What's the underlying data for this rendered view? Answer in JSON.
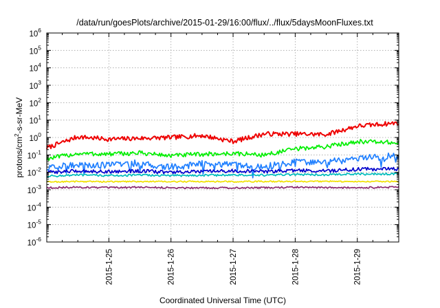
{
  "chart_data": {
    "type": "line",
    "title": "/data/run/goesPlots/archive/2015-01-29/16:00/flux/../flux/5daysMoonFluxes.txt",
    "xlabel": "Coordinated Universal Time (UTC)",
    "ylabel_parts": {
      "pre": "protons/cm",
      "sup": "2",
      "post": "-s-sr-MeV"
    },
    "x_range": [
      "2015-01-24 00:00",
      "2015-01-29 16:00"
    ],
    "x_ticks": [
      "2015-1-25",
      "2015-1-26",
      "2015-1-27",
      "2015-1-28",
      "2015-1-29"
    ],
    "x_tick_days": [
      1,
      2,
      3,
      4,
      5
    ],
    "x_days_span": 5.667,
    "y_scale": "log",
    "ylim": [
      1e-06,
      1000000.0
    ],
    "y_ticks": [
      {
        "base": "10",
        "exp": "-6"
      },
      {
        "base": "10",
        "exp": "-5"
      },
      {
        "base": "10",
        "exp": "-4"
      },
      {
        "base": "10",
        "exp": "-3"
      },
      {
        "base": "10",
        "exp": "-2"
      },
      {
        "base": "10",
        "exp": "-1"
      },
      {
        "base": "10",
        "exp": "0"
      },
      {
        "base": "10",
        "exp": "1"
      },
      {
        "base": "10",
        "exp": "2"
      },
      {
        "base": "10",
        "exp": "3"
      },
      {
        "base": "10",
        "exp": "4"
      },
      {
        "base": "10",
        "exp": "5"
      },
      {
        "base": "10",
        "exp": "6"
      }
    ],
    "grid": true,
    "series": [
      {
        "color": "#ee0000",
        "x_days": [
          0,
          0.5,
          1,
          1.5,
          2,
          2.5,
          3,
          3.5,
          4,
          4.5,
          5,
          5.667
        ],
        "values": [
          0.25,
          1.1,
          0.8,
          0.9,
          1.0,
          1.3,
          0.6,
          1.6,
          1.6,
          1.5,
          4.5,
          7.0
        ]
      },
      {
        "color": "#00ee00",
        "x_days": [
          0,
          0.5,
          1,
          1.5,
          2,
          2.5,
          3,
          3.5,
          4,
          4.5,
          5,
          5.667
        ],
        "values": [
          0.06,
          0.12,
          0.11,
          0.13,
          0.09,
          0.11,
          0.12,
          0.1,
          0.22,
          0.3,
          0.6,
          0.5
        ]
      },
      {
        "color": "#1f7fff",
        "x_days": [
          0,
          0.5,
          1,
          1.5,
          2,
          2.5,
          3,
          3.5,
          4,
          4.5,
          5,
          5.667
        ],
        "values": [
          0.015,
          0.03,
          0.025,
          0.035,
          0.02,
          0.03,
          0.025,
          0.02,
          0.04,
          0.04,
          0.06,
          0.09
        ]
      },
      {
        "color": "#0000cc",
        "x_days": [
          0,
          0.5,
          1,
          1.5,
          2,
          2.5,
          3,
          3.5,
          4,
          4.5,
          5,
          5.667
        ],
        "values": [
          0.01,
          0.012,
          0.011,
          0.012,
          0.01,
          0.011,
          0.012,
          0.011,
          0.013,
          0.012,
          0.015,
          0.016
        ]
      },
      {
        "color": "#00bbbb",
        "x_days": [
          0,
          0.5,
          1,
          1.5,
          2,
          2.5,
          3,
          3.5,
          4,
          4.5,
          5,
          5.667
        ],
        "values": [
          0.006,
          0.007,
          0.0065,
          0.007,
          0.0065,
          0.0068,
          0.007,
          0.0068,
          0.0075,
          0.0072,
          0.008,
          0.008
        ]
      },
      {
        "color": "#f0e000",
        "x_days": [
          0,
          0.5,
          1,
          1.5,
          2,
          2.5,
          3,
          3.5,
          4,
          4.5,
          5,
          5.667
        ],
        "values": [
          0.0028,
          0.003,
          0.0029,
          0.003,
          0.0029,
          0.003,
          0.0029,
          0.003,
          0.003,
          0.003,
          0.003,
          0.003
        ]
      },
      {
        "color": "#8b2a6f",
        "x_days": [
          0,
          0.5,
          1,
          1.5,
          2,
          2.5,
          3,
          3.5,
          4,
          4.5,
          5,
          5.667
        ],
        "values": [
          0.0013,
          0.0014,
          0.0013,
          0.0014,
          0.0013,
          0.0013,
          0.0013,
          0.0013,
          0.0014,
          0.0013,
          0.0013,
          0.0014
        ]
      }
    ]
  }
}
